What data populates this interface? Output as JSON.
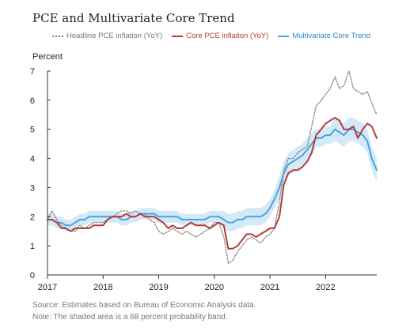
{
  "title": "PCE and Multivariate Core Trend",
  "legend": {
    "headline": "Headline PCE inflation (YoY)",
    "core": "Core PCE inflation (YoY)",
    "trend": "Multivariate Core Trend"
  },
  "source": {
    "line1": "Source: Estimates based on Bureau of Economic Analysis data.",
    "line2": "Note: The shaded area is a 68 percent probability band."
  },
  "chart_data": {
    "type": "line",
    "title": "PCE and Multivariate Core Trend",
    "ylabel": "Percent",
    "xlabel": "",
    "xlim": [
      2017.0,
      2022.92
    ],
    "ylim": [
      0,
      7
    ],
    "x_ticks": [
      2017,
      2018,
      2019,
      2020,
      2021,
      2022
    ],
    "y_ticks": [
      0,
      1,
      2,
      3,
      4,
      5,
      6,
      7
    ],
    "grid": false,
    "legend_position": "top",
    "colors": {
      "headline": "#888888",
      "core": "#b73a3a",
      "trend": "#4aa3dd",
      "band": "#d4e9f8"
    },
    "series": [
      {
        "name": "Headline PCE inflation (YoY)",
        "style": "dotted",
        "x": [
          2017.0,
          2017.08,
          2017.17,
          2017.25,
          2017.33,
          2017.42,
          2017.5,
          2017.58,
          2017.67,
          2017.75,
          2017.83,
          2017.92,
          2018.0,
          2018.08,
          2018.17,
          2018.25,
          2018.33,
          2018.42,
          2018.5,
          2018.58,
          2018.67,
          2018.75,
          2018.83,
          2018.92,
          2019.0,
          2019.08,
          2019.17,
          2019.25,
          2019.33,
          2019.42,
          2019.5,
          2019.58,
          2019.67,
          2019.75,
          2019.83,
          2019.92,
          2020.0,
          2020.08,
          2020.17,
          2020.25,
          2020.33,
          2020.42,
          2020.5,
          2020.58,
          2020.67,
          2020.75,
          2020.83,
          2020.92,
          2021.0,
          2021.08,
          2021.17,
          2021.25,
          2021.33,
          2021.42,
          2021.5,
          2021.58,
          2021.67,
          2021.75,
          2021.83,
          2021.92,
          2022.0,
          2022.08,
          2022.17,
          2022.25,
          2022.33,
          2022.42,
          2022.5,
          2022.58,
          2022.67,
          2022.75,
          2022.83,
          2022.92
        ],
        "values": [
          1.9,
          2.2,
          1.9,
          1.7,
          1.6,
          1.5,
          1.5,
          1.7,
          1.6,
          1.7,
          1.8,
          1.8,
          1.8,
          1.9,
          2.0,
          2.1,
          2.2,
          2.2,
          2.1,
          2.2,
          2.1,
          2.1,
          1.9,
          1.8,
          1.5,
          1.4,
          1.5,
          1.6,
          1.5,
          1.4,
          1.5,
          1.4,
          1.3,
          1.4,
          1.5,
          1.6,
          1.8,
          1.8,
          1.3,
          0.4,
          0.5,
          0.8,
          1.0,
          1.2,
          1.3,
          1.2,
          1.1,
          1.3,
          1.4,
          1.6,
          2.5,
          3.6,
          4.0,
          4.0,
          4.2,
          4.3,
          4.4,
          5.1,
          5.8,
          6.0,
          6.2,
          6.4,
          6.8,
          6.4,
          6.5,
          7.0,
          6.4,
          6.3,
          6.2,
          6.3,
          5.9,
          5.5
        ]
      },
      {
        "name": "Core PCE inflation (YoY)",
        "style": "solid",
        "x": [
          2017.0,
          2017.08,
          2017.17,
          2017.25,
          2017.33,
          2017.42,
          2017.5,
          2017.58,
          2017.67,
          2017.75,
          2017.83,
          2017.92,
          2018.0,
          2018.08,
          2018.17,
          2018.25,
          2018.33,
          2018.42,
          2018.5,
          2018.58,
          2018.67,
          2018.75,
          2018.83,
          2018.92,
          2019.0,
          2019.08,
          2019.17,
          2019.25,
          2019.33,
          2019.42,
          2019.5,
          2019.58,
          2019.67,
          2019.75,
          2019.83,
          2019.92,
          2020.0,
          2020.08,
          2020.17,
          2020.25,
          2020.33,
          2020.42,
          2020.5,
          2020.58,
          2020.67,
          2020.75,
          2020.83,
          2020.92,
          2021.0,
          2021.08,
          2021.17,
          2021.25,
          2021.33,
          2021.42,
          2021.5,
          2021.58,
          2021.67,
          2021.75,
          2021.83,
          2021.92,
          2022.0,
          2022.08,
          2022.17,
          2022.25,
          2022.33,
          2022.42,
          2022.5,
          2022.58,
          2022.67,
          2022.75,
          2022.83,
          2022.92
        ],
        "values": [
          1.9,
          1.9,
          1.8,
          1.6,
          1.6,
          1.5,
          1.6,
          1.6,
          1.6,
          1.6,
          1.7,
          1.7,
          1.7,
          1.9,
          2.0,
          2.0,
          2.0,
          2.1,
          2.0,
          2.0,
          2.1,
          2.0,
          2.0,
          2.0,
          1.9,
          1.8,
          1.6,
          1.7,
          1.6,
          1.6,
          1.7,
          1.8,
          1.7,
          1.7,
          1.7,
          1.6,
          1.7,
          1.8,
          1.7,
          0.9,
          0.9,
          1.0,
          1.2,
          1.4,
          1.4,
          1.3,
          1.4,
          1.5,
          1.6,
          1.6,
          2.0,
          3.1,
          3.5,
          3.6,
          3.6,
          3.7,
          3.9,
          4.2,
          4.8,
          5.0,
          5.2,
          5.3,
          5.4,
          5.3,
          5.0,
          5.0,
          5.1,
          4.7,
          5.0,
          5.2,
          5.1,
          4.7
        ]
      },
      {
        "name": "Multivariate Core Trend",
        "style": "solid",
        "x": [
          2017.0,
          2017.08,
          2017.17,
          2017.25,
          2017.33,
          2017.42,
          2017.5,
          2017.58,
          2017.67,
          2017.75,
          2017.83,
          2017.92,
          2018.0,
          2018.08,
          2018.17,
          2018.25,
          2018.33,
          2018.42,
          2018.5,
          2018.58,
          2018.67,
          2018.75,
          2018.83,
          2018.92,
          2019.0,
          2019.08,
          2019.17,
          2019.25,
          2019.33,
          2019.42,
          2019.5,
          2019.58,
          2019.67,
          2019.75,
          2019.83,
          2019.92,
          2020.0,
          2020.08,
          2020.17,
          2020.25,
          2020.33,
          2020.42,
          2020.5,
          2020.58,
          2020.67,
          2020.75,
          2020.83,
          2020.92,
          2021.0,
          2021.08,
          2021.17,
          2021.25,
          2021.33,
          2021.42,
          2021.5,
          2021.58,
          2021.67,
          2021.75,
          2021.83,
          2021.92,
          2022.0,
          2022.08,
          2022.17,
          2022.25,
          2022.33,
          2022.42,
          2022.5,
          2022.58,
          2022.67,
          2022.75,
          2022.83,
          2022.92
        ],
        "values": [
          1.9,
          1.9,
          1.8,
          1.8,
          1.7,
          1.7,
          1.8,
          1.9,
          1.9,
          2.0,
          2.0,
          2.0,
          2.0,
          2.0,
          2.0,
          2.0,
          1.9,
          1.9,
          2.0,
          2.0,
          2.1,
          2.1,
          2.1,
          2.1,
          2.0,
          2.0,
          2.0,
          2.0,
          2.0,
          1.9,
          1.9,
          1.9,
          1.9,
          1.9,
          1.9,
          2.0,
          2.0,
          2.0,
          1.9,
          1.8,
          1.8,
          1.9,
          1.9,
          2.0,
          2.0,
          2.0,
          2.0,
          2.1,
          2.3,
          2.6,
          3.0,
          3.5,
          3.8,
          3.9,
          4.0,
          4.1,
          4.3,
          4.5,
          4.7,
          4.7,
          4.8,
          4.8,
          5.0,
          4.9,
          4.8,
          5.0,
          5.0,
          4.9,
          4.8,
          4.6,
          4.0,
          3.6
        ],
        "band_lower": [
          1.7,
          1.7,
          1.6,
          1.6,
          1.5,
          1.5,
          1.6,
          1.7,
          1.7,
          1.8,
          1.8,
          1.8,
          1.8,
          1.8,
          1.8,
          1.8,
          1.7,
          1.7,
          1.8,
          1.8,
          1.9,
          1.9,
          1.9,
          1.9,
          1.8,
          1.8,
          1.8,
          1.8,
          1.8,
          1.7,
          1.7,
          1.7,
          1.7,
          1.7,
          1.7,
          1.8,
          1.8,
          1.8,
          1.6,
          1.5,
          1.5,
          1.6,
          1.6,
          1.7,
          1.7,
          1.7,
          1.7,
          1.8,
          2.0,
          2.3,
          2.6,
          3.1,
          3.4,
          3.5,
          3.6,
          3.7,
          3.9,
          4.1,
          4.4,
          4.4,
          4.5,
          4.5,
          4.6,
          4.5,
          4.4,
          4.6,
          4.6,
          4.5,
          4.4,
          4.2,
          3.6,
          3.2
        ],
        "band_upper": [
          2.1,
          2.1,
          2.0,
          2.0,
          1.9,
          1.9,
          2.0,
          2.1,
          2.1,
          2.2,
          2.2,
          2.2,
          2.2,
          2.2,
          2.2,
          2.2,
          2.1,
          2.1,
          2.2,
          2.2,
          2.3,
          2.3,
          2.3,
          2.3,
          2.2,
          2.2,
          2.2,
          2.2,
          2.2,
          2.1,
          2.1,
          2.1,
          2.1,
          2.1,
          2.1,
          2.2,
          2.2,
          2.2,
          2.2,
          2.1,
          2.1,
          2.2,
          2.2,
          2.3,
          2.3,
          2.3,
          2.3,
          2.4,
          2.6,
          2.9,
          3.4,
          3.9,
          4.2,
          4.3,
          4.4,
          4.5,
          4.7,
          4.9,
          5.0,
          5.0,
          5.1,
          5.1,
          5.4,
          5.3,
          5.2,
          5.4,
          5.4,
          5.3,
          5.2,
          5.0,
          4.4,
          4.0
        ]
      }
    ]
  }
}
